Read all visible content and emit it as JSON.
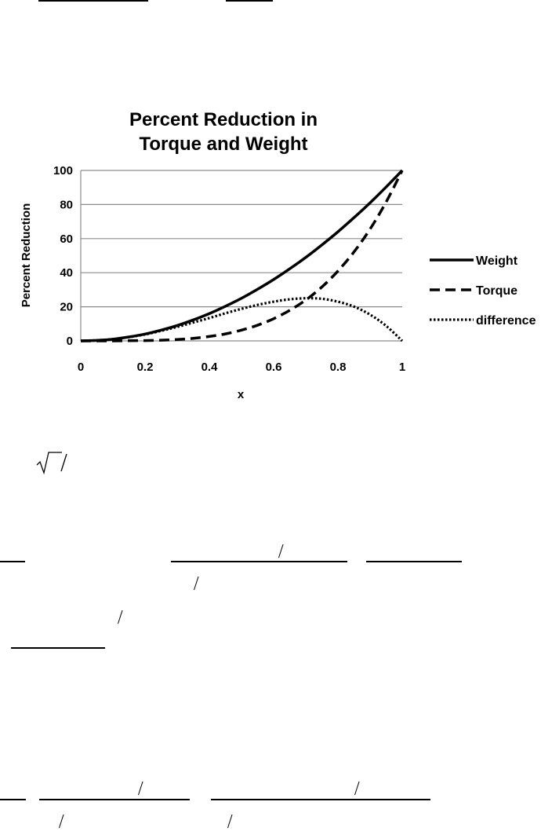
{
  "chart_data": {
    "type": "line",
    "title_lines": [
      "Percent Reduction in",
      "Torque and Weight"
    ],
    "xlabel": "x",
    "ylabel": "Percent Reduction",
    "xlim": [
      0,
      1
    ],
    "ylim": [
      0,
      100
    ],
    "x_ticks": [
      0,
      0.2,
      0.4,
      0.6,
      0.8,
      1
    ],
    "x_tick_labels": [
      "0",
      "0.2",
      "0.4",
      "0.6",
      "0.8",
      "1"
    ],
    "y_ticks": [
      0,
      20,
      40,
      60,
      80,
      100
    ],
    "y_tick_labels": [
      "0",
      "20",
      "40",
      "60",
      "80",
      "100"
    ],
    "grid": "horizontal",
    "legend_position": "right",
    "x": [
      0,
      0.05,
      0.1,
      0.15,
      0.2,
      0.25,
      0.3,
      0.35,
      0.4,
      0.45,
      0.5,
      0.55,
      0.6,
      0.65,
      0.7,
      0.75,
      0.8,
      0.85,
      0.9,
      0.95,
      1
    ],
    "series": [
      {
        "name": "Weight",
        "style": "solid",
        "values": [
          0,
          0.3,
          1,
          2.3,
          4,
          6.3,
          9,
          12.3,
          16,
          20.3,
          25,
          30.3,
          36,
          42.3,
          49,
          56.3,
          64,
          72.3,
          81,
          90.3,
          100
        ]
      },
      {
        "name": "Torque",
        "style": "dashed",
        "values": [
          0,
          0,
          0,
          0.1,
          0.2,
          0.4,
          0.8,
          1.5,
          2.6,
          4.1,
          6.3,
          9.2,
          13,
          17.9,
          24,
          31.6,
          41,
          52.2,
          65.6,
          81.5,
          100
        ]
      },
      {
        "name": "difference",
        "style": "dotted",
        "values": [
          0,
          0.3,
          1,
          2.2,
          3.8,
          5.9,
          8.2,
          10.8,
          13.4,
          16.2,
          18.8,
          21.1,
          23,
          24.4,
          25,
          24.7,
          23,
          20.1,
          15.4,
          8.8,
          0
        ]
      }
    ]
  }
}
